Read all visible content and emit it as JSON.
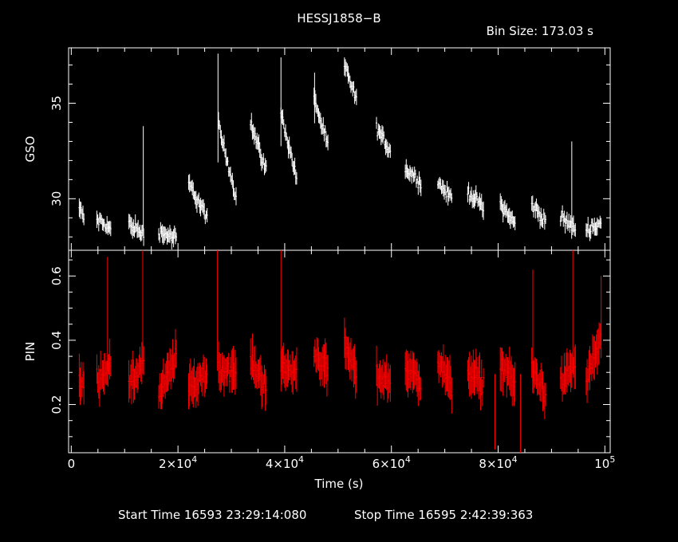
{
  "title": "HESSJ1858−B",
  "bin_size": "Bin Size: 173.03 s",
  "footer": {
    "start": "Start Time 16593 23:29:14:080",
    "stop": "Stop Time 16595  2:42:39:363"
  },
  "colors": {
    "background": "#000000",
    "axes": "#ffffff",
    "gso": "#ffffff",
    "pin": "#ff0000"
  },
  "chart_data": [
    {
      "type": "line",
      "panel": "top",
      "ylabel": "GSO",
      "ylim": [
        27.3,
        37.9
      ],
      "yticks": [
        30,
        35
      ],
      "ytick_labels": [
        "30",
        "35"
      ],
      "xlim": [
        -500,
        101000
      ],
      "series": [
        {
          "color": "#ffffff",
          "segments": [
            {
              "x0": 1500,
              "x1": 2500,
              "start": 29.5,
              "end": 28.9
            },
            {
              "x0": 4800,
              "x1": 7500,
              "start": 28.9,
              "end": 28.4
            },
            {
              "x0": 10800,
              "x1": 13600,
              "start": 28.7,
              "end": 28.1
            },
            {
              "x0": 16400,
              "x1": 19800,
              "start": 28.3,
              "end": 27.9
            },
            {
              "x0": 22000,
              "x1": 25500,
              "start": 30.8,
              "end": 29.0
            },
            {
              "x0": 27600,
              "x1": 31000,
              "start": 33.8,
              "end": 30.0
            },
            {
              "x0": 33600,
              "x1": 36600,
              "start": 34.0,
              "end": 31.4
            },
            {
              "x0": 39300,
              "x1": 42300,
              "start": 34.5,
              "end": 31.0
            },
            {
              "x0": 45500,
              "x1": 48200,
              "start": 35.3,
              "end": 32.6
            },
            {
              "x0": 51200,
              "x1": 53600,
              "start": 37.0,
              "end": 35.0
            },
            {
              "x0": 57200,
              "x1": 59800,
              "start": 33.7,
              "end": 32.5
            },
            {
              "x0": 62600,
              "x1": 65700,
              "start": 31.6,
              "end": 30.8
            },
            {
              "x0": 68700,
              "x1": 71400,
              "start": 30.8,
              "end": 30.0
            },
            {
              "x0": 74300,
              "x1": 77300,
              "start": 30.4,
              "end": 29.5
            },
            {
              "x0": 80400,
              "x1": 83300,
              "start": 29.8,
              "end": 28.6
            },
            {
              "x0": 86300,
              "x1": 89000,
              "start": 29.7,
              "end": 28.8
            },
            {
              "x0": 91700,
              "x1": 94600,
              "start": 29.0,
              "end": 28.4
            },
            {
              "x0": 96500,
              "x1": 99400,
              "start": 28.4,
              "end": 28.7
            }
          ],
          "spikes": [
            {
              "x": 13500,
              "y": 33.8
            },
            {
              "x": 27500,
              "y": 37.6
            },
            {
              "x": 39300,
              "y": 37.4
            },
            {
              "x": 45600,
              "y": 36.6
            },
            {
              "x": 93800,
              "y": 33.0
            }
          ]
        }
      ]
    },
    {
      "type": "line",
      "panel": "bottom",
      "ylabel": "PIN",
      "xlabel": "Time (s)",
      "ylim": [
        0.05,
        0.68
      ],
      "yticks": [
        0.2,
        0.4,
        0.6
      ],
      "ytick_labels": [
        "0.2",
        "0.4",
        "0.6"
      ],
      "xlim": [
        -500,
        101000
      ],
      "xticks": [
        0,
        20000,
        40000,
        60000,
        80000,
        100000
      ],
      "xtick_labels": [
        {
          "base": "0",
          "exp": ""
        },
        {
          "base": "2×10",
          "exp": "4"
        },
        {
          "base": "4×10",
          "exp": "4"
        },
        {
          "base": "6×10",
          "exp": "4"
        },
        {
          "base": "8×10",
          "exp": "4"
        },
        {
          "base": "10",
          "exp": "5"
        }
      ],
      "series": [
        {
          "color": "#ff0000",
          "segments": [
            {
              "x0": 1500,
              "x1": 2500,
              "start": 0.27,
              "end": 0.26
            },
            {
              "x0": 4800,
              "x1": 7500,
              "start": 0.28,
              "end": 0.33
            },
            {
              "x0": 10800,
              "x1": 13600,
              "start": 0.25,
              "end": 0.34
            },
            {
              "x0": 16400,
              "x1": 19800,
              "start": 0.22,
              "end": 0.36
            },
            {
              "x0": 22000,
              "x1": 25500,
              "start": 0.25,
              "end": 0.3
            },
            {
              "x0": 27600,
              "x1": 31000,
              "start": 0.31,
              "end": 0.3
            },
            {
              "x0": 33600,
              "x1": 36600,
              "start": 0.33,
              "end": 0.26
            },
            {
              "x0": 39300,
              "x1": 42300,
              "start": 0.31,
              "end": 0.3
            },
            {
              "x0": 45500,
              "x1": 48200,
              "start": 0.36,
              "end": 0.31
            },
            {
              "x0": 51200,
              "x1": 53600,
              "start": 0.38,
              "end": 0.29
            },
            {
              "x0": 57200,
              "x1": 59800,
              "start": 0.29,
              "end": 0.27
            },
            {
              "x0": 62600,
              "x1": 65700,
              "start": 0.32,
              "end": 0.26
            },
            {
              "x0": 68700,
              "x1": 71400,
              "start": 0.34,
              "end": 0.25
            },
            {
              "x0": 74300,
              "x1": 77300,
              "start": 0.31,
              "end": 0.26
            },
            {
              "x0": 80400,
              "x1": 83300,
              "start": 0.33,
              "end": 0.26
            },
            {
              "x0": 86300,
              "x1": 89000,
              "start": 0.31,
              "end": 0.23
            },
            {
              "x0": 91700,
              "x1": 94600,
              "start": 0.26,
              "end": 0.33
            },
            {
              "x0": 96500,
              "x1": 99400,
              "start": 0.27,
              "end": 0.42
            }
          ],
          "spikes": [
            {
              "x": 6800,
              "y": 0.66
            },
            {
              "x": 13400,
              "y": 0.68
            },
            {
              "x": 27400,
              "y": 0.68
            },
            {
              "x": 39300,
              "y": 0.68
            },
            {
              "x": 86500,
              "y": 0.62
            },
            {
              "x": 94000,
              "y": 0.68
            },
            {
              "x": 99300,
              "y": 0.6
            },
            {
              "x": 79400,
              "y": 0.06
            },
            {
              "x": 84200,
              "y": 0.05
            }
          ]
        }
      ]
    }
  ]
}
